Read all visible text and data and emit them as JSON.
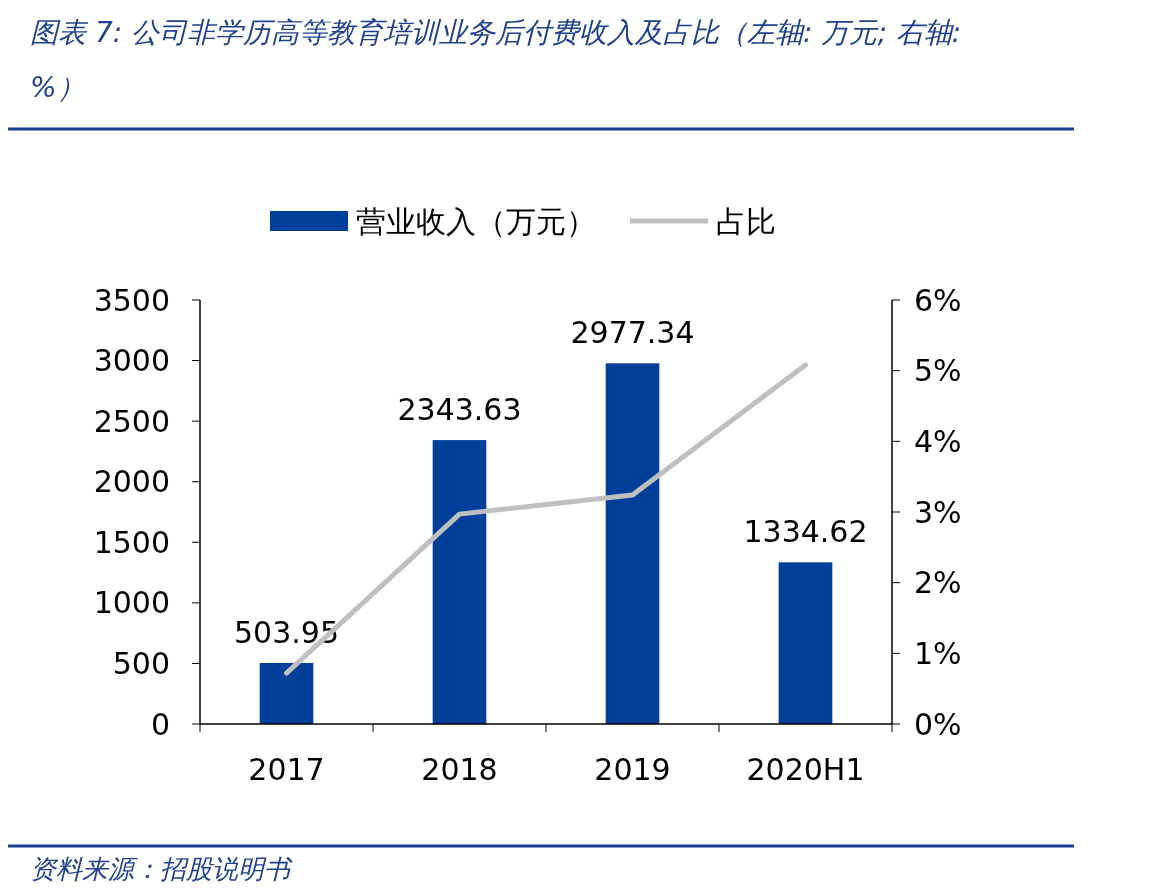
{
  "chart_data": {
    "type": "bar",
    "title": "图表 7: 公司非学历高等教育培训业务后付费收入及占比（左轴: 万元; 右轴: %）",
    "categories": [
      "2017",
      "2018",
      "2019",
      "2020H1"
    ],
    "series": [
      {
        "name": "营业收入（万元）",
        "color": "#00409a",
        "values": [
          503.95,
          2343.63,
          2977.34,
          1334.62
        ],
        "value_labels": [
          "503.95",
          "2343.63",
          "2977.34",
          "1334.62"
        ]
      },
      {
        "name": "占比",
        "type": "line",
        "axis": "y2",
        "color": "#bfbfbf",
        "values": [
          0.72,
          2.97,
          3.24,
          5.08
        ]
      }
    ],
    "ylim": [
      0,
      3500
    ],
    "yticks": [
      0,
      500,
      1000,
      1500,
      2000,
      2500,
      3000,
      3500
    ],
    "y2lim": [
      0,
      6
    ],
    "y2ticks": [
      {
        "value": 0,
        "label": "0%"
      },
      {
        "value": 1,
        "label": "1%"
      },
      {
        "value": 2,
        "label": "2%"
      },
      {
        "value": 3,
        "label": "3%"
      },
      {
        "value": 4,
        "label": "4%"
      },
      {
        "value": 5,
        "label": "5%"
      },
      {
        "value": 6,
        "label": "6%"
      }
    ],
    "legend": "top",
    "grid": false,
    "marker": "none",
    "annotations": [
      "资料来源：招股说明书"
    ]
  }
}
